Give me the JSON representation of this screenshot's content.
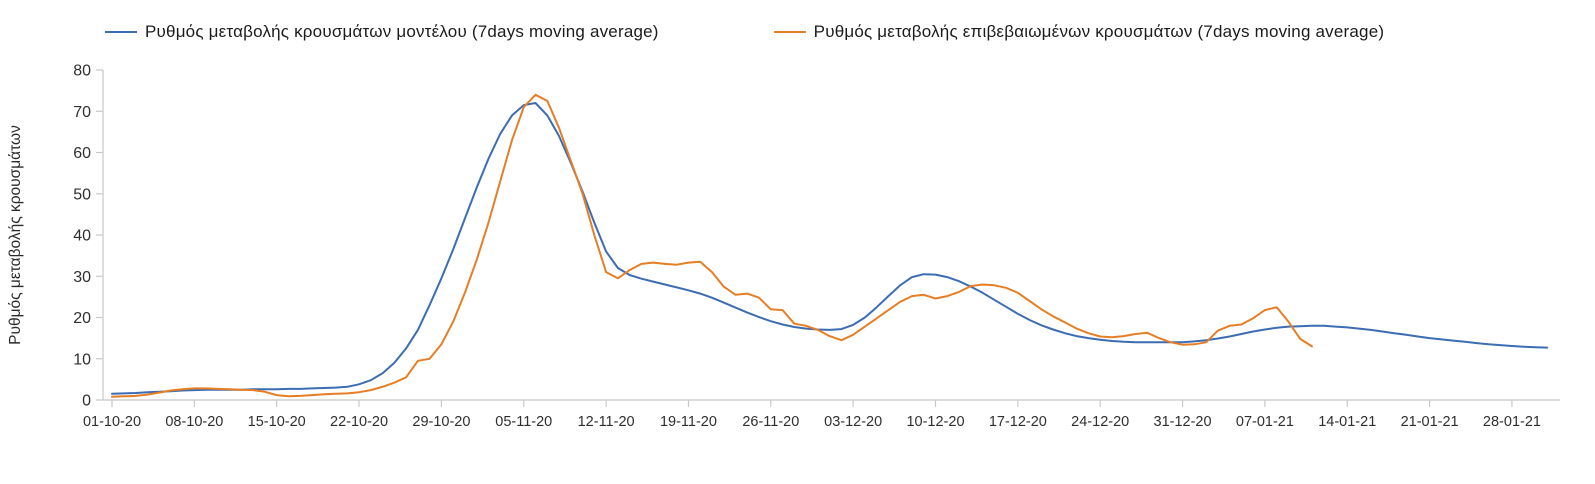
{
  "page": {
    "background_color": "#ffffff"
  },
  "chart_data": {
    "type": "line",
    "title": "",
    "xlabel": "",
    "ylabel": "Ρυθμός μεταβολής κρουσμάτων",
    "ylim": [
      0,
      80
    ],
    "y_ticks": [
      0,
      10,
      20,
      30,
      40,
      50,
      60,
      70,
      80
    ],
    "x_tick_labels": [
      "01-10-20",
      "08-10-20",
      "15-10-20",
      "22-10-20",
      "29-10-20",
      "05-11-20",
      "12-11-20",
      "19-11-20",
      "26-11-20",
      "03-12-20",
      "10-12-20",
      "17-12-20",
      "24-12-20",
      "31-12-20",
      "07-01-21",
      "14-01-21",
      "21-01-21",
      "28-01-21"
    ],
    "x_tick_interval_days": 7,
    "grid": false,
    "legend_position": "top",
    "axis_color": "#c8c8c8",
    "tick_label_color": "#2f2f2f",
    "series": [
      {
        "name": "Ρυθμός μεταβολής κρουσμάτων μοντέλου (7days moving average)",
        "color": "#3c6db3",
        "start_day": 0,
        "values": [
          1.5,
          1.6,
          1.7,
          1.9,
          2.0,
          2.1,
          2.3,
          2.4,
          2.5,
          2.5,
          2.5,
          2.5,
          2.6,
          2.6,
          2.6,
          2.7,
          2.7,
          2.8,
          2.9,
          3.0,
          3.2,
          3.8,
          4.8,
          6.5,
          9.0,
          12.5,
          17.0,
          23.0,
          29.5,
          36.5,
          44.0,
          51.5,
          58.5,
          64.5,
          69.0,
          71.5,
          72.0,
          69.0,
          64.0,
          57.5,
          50.5,
          43.0,
          36.0,
          32.0,
          30.3,
          29.4,
          28.7,
          28.0,
          27.3,
          26.6,
          25.8,
          24.8,
          23.6,
          22.4,
          21.2,
          20.1,
          19.1,
          18.3,
          17.7,
          17.3,
          17.1,
          17.0,
          17.2,
          18.2,
          20.0,
          22.5,
          25.2,
          27.8,
          29.8,
          30.5,
          30.4,
          29.8,
          28.8,
          27.5,
          26.0,
          24.3,
          22.6,
          20.9,
          19.4,
          18.1,
          17.1,
          16.2,
          15.5,
          15.0,
          14.6,
          14.3,
          14.1,
          14.0,
          14.0,
          14.0,
          14.0,
          14.0,
          14.2,
          14.5,
          14.9,
          15.4,
          16.0,
          16.6,
          17.1,
          17.5,
          17.8,
          17.9,
          18.0,
          18.0,
          17.8,
          17.6,
          17.3,
          17.0,
          16.6,
          16.2,
          15.8,
          15.4,
          15.0,
          14.7,
          14.4,
          14.1,
          13.8,
          13.5,
          13.3,
          13.1,
          12.9,
          12.8,
          12.7
        ]
      },
      {
        "name": "Ρυθμός μεταβολής επιβεβαιωμένων κρουσμάτων (7days moving average)",
        "color": "#e57e25",
        "start_day": 0,
        "values": [
          0.8,
          0.9,
          1.0,
          1.3,
          1.8,
          2.3,
          2.6,
          2.8,
          2.8,
          2.7,
          2.6,
          2.5,
          2.4,
          2.0,
          1.2,
          0.9,
          1.0,
          1.2,
          1.4,
          1.5,
          1.6,
          1.9,
          2.4,
          3.2,
          4.2,
          5.5,
          9.5,
          10.0,
          13.5,
          19.0,
          26.0,
          34.0,
          43.0,
          53.0,
          63.0,
          71.0,
          74.0,
          72.5,
          66.0,
          58.0,
          50.0,
          40.0,
          31.0,
          29.5,
          31.5,
          33.0,
          33.3,
          33.0,
          32.8,
          33.3,
          33.5,
          31.0,
          27.5,
          25.5,
          25.8,
          24.8,
          22.0,
          21.8,
          18.5,
          18.0,
          17.0,
          15.5,
          14.5,
          15.8,
          17.8,
          19.8,
          21.8,
          23.8,
          25.2,
          25.5,
          24.6,
          25.2,
          26.2,
          27.6,
          28.0,
          27.8,
          27.2,
          26.0,
          24.0,
          22.0,
          20.3,
          18.8,
          17.3,
          16.2,
          15.4,
          15.2,
          15.5,
          16.0,
          16.3,
          15.0,
          14.0,
          13.4,
          13.5,
          14.0,
          16.8,
          18.0,
          18.3,
          19.8,
          21.8,
          22.5,
          19.0,
          14.8,
          13.0
        ]
      }
    ]
  }
}
